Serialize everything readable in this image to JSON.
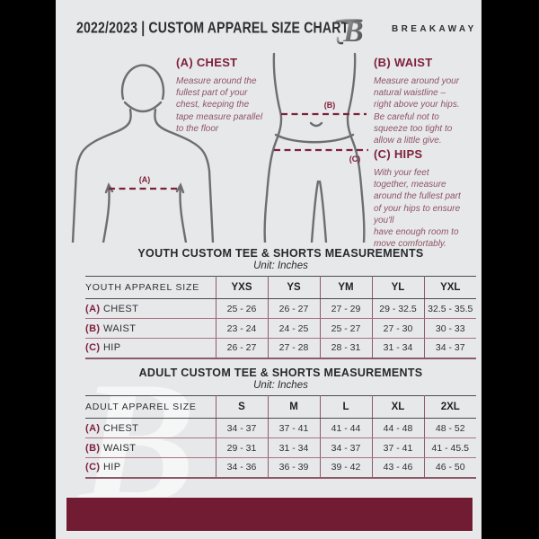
{
  "header": {
    "title": "2022/2023  |  CUSTOM APPAREL SIZE CHART",
    "brand": "BREAKAWAY",
    "logo_letter": "B"
  },
  "measurements": [
    {
      "label": "(A) CHEST",
      "marker": "(A)",
      "description": "Measure around the\nfullest part of your\nchest, keeping the\ntape measure parallel\nto the floor"
    },
    {
      "label": "(B) WAIST",
      "marker": "(B)",
      "description": "Measure around your\nnatural waistline –\nright above your hips.\nBe careful not to\nsqueeze too tight to\nallow a little give."
    },
    {
      "label": "(C) HIPS",
      "marker": "(C)",
      "description": "With your feet\ntogether, measure\naround the fullest part\nof your hips to ensure\nyou'll\nhave enough room to\nmove comfortably."
    }
  ],
  "youth_table": {
    "title": "YOUTH CUSTOM TEE & SHORTS MEASUREMENTS",
    "unit": "Unit: Inches",
    "header": [
      "YOUTH APPAREL SIZE",
      "YXS",
      "YS",
      "YM",
      "YL",
      "YXL"
    ],
    "rows": [
      {
        "prefix": "(A)",
        "label": "CHEST",
        "values": [
          "25 - 26",
          "26 - 27",
          "27 - 29",
          "29 - 32.5",
          "32.5 - 35.5"
        ]
      },
      {
        "prefix": "(B)",
        "label": "WAIST",
        "values": [
          "23 - 24",
          "24 - 25",
          "25 - 27",
          "27 - 30",
          "30 - 33"
        ]
      },
      {
        "prefix": "(C)",
        "label": "HIP",
        "values": [
          "26 - 27",
          "27 - 28",
          "28 - 31",
          "31 - 34",
          "34 - 37"
        ]
      }
    ]
  },
  "adult_table": {
    "title": "ADULT CUSTOM TEE & SHORTS MEASUREMENTS",
    "unit": "Unit: Inches",
    "header": [
      "ADULT APPAREL SIZE",
      "S",
      "M",
      "L",
      "XL",
      "2XL"
    ],
    "rows": [
      {
        "prefix": "(A)",
        "label": "CHEST",
        "values": [
          "34 - 37",
          "37 - 41",
          "41 - 44",
          "44 - 48",
          "48 - 52"
        ]
      },
      {
        "prefix": "(B)",
        "label": "WAIST",
        "values": [
          "29 - 31",
          "31 - 34",
          "34 - 37",
          "37 - 41",
          "41 - 45.5"
        ]
      },
      {
        "prefix": "(C)",
        "label": "HIP",
        "values": [
          "34 - 36",
          "36 - 39",
          "39 - 42",
          "43 - 46",
          "46 - 50"
        ]
      }
    ]
  },
  "watermark_letter": "B",
  "colors": {
    "accent_maroon": "#7d1f3a",
    "footer_maroon": "#721c33",
    "table_line_maroon": "#8e5a68",
    "table_line_dark": "#4a4b50",
    "figure_gray": "#6d6e70",
    "page_background": "#e7e8e9",
    "pillarbox": "#000000"
  }
}
